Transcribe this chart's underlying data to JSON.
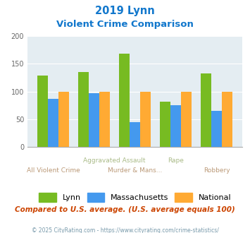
{
  "title_line1": "2019 Lynn",
  "title_line2": "Violent Crime Comparison",
  "lynn": [
    129,
    135,
    168,
    82,
    133
  ],
  "massachusetts": [
    86,
    97,
    45,
    75,
    65
  ],
  "national": [
    100,
    100,
    100,
    100,
    100
  ],
  "lynn_color": "#77bb22",
  "massachusetts_color": "#4499ee",
  "national_color": "#ffaa33",
  "ylim": [
    0,
    200
  ],
  "yticks": [
    0,
    50,
    100,
    150,
    200
  ],
  "bg_color": "#e4edf2",
  "title_color": "#1177cc",
  "subtitle_note": "Compared to U.S. average. (U.S. average equals 100)",
  "footer": "© 2025 CityRating.com - https://www.cityrating.com/crime-statistics/",
  "subtitle_color": "#cc4400",
  "footer_color": "#7799aa",
  "label_color_top": "#aabb99",
  "label_color_bot": "#bb9977",
  "top_row_labels": [
    [
      1.5,
      "Aggravated Assault"
    ],
    [
      3.0,
      "Rape"
    ]
  ],
  "bot_row_labels": [
    [
      0.0,
      "All Violent Crime"
    ],
    [
      2.0,
      "Murder & Mans..."
    ],
    [
      4.0,
      "Robbery"
    ]
  ]
}
